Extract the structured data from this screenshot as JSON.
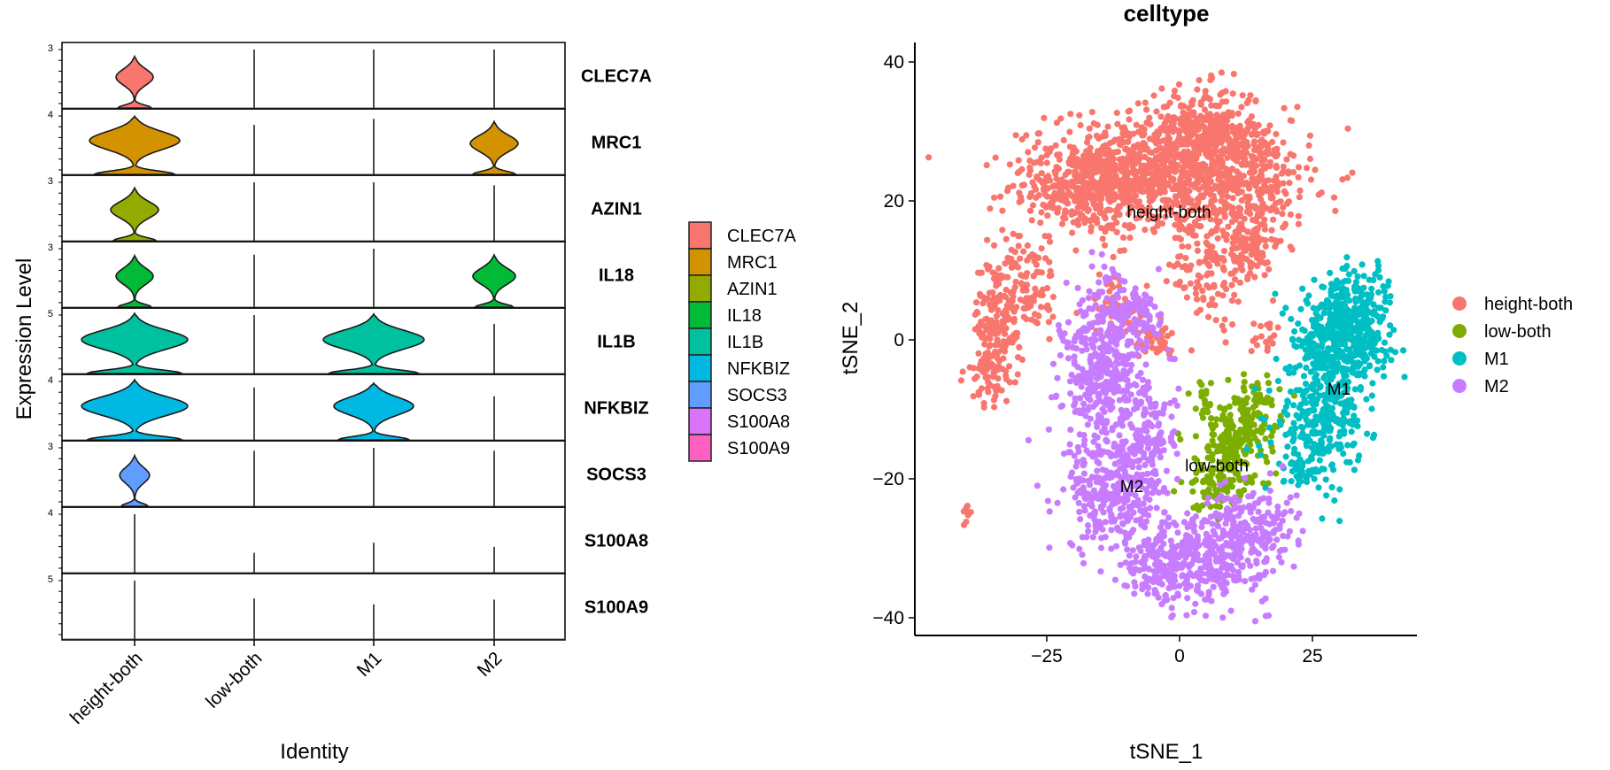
{
  "chart_data": [
    {
      "type": "violin",
      "title": "",
      "xlabel": "Identity",
      "ylabel": "Expression Level",
      "categories": [
        "height-both",
        "low-both",
        "M1",
        "M2"
      ],
      "features": [
        {
          "name": "CLEC7A",
          "color": "#F8766D",
          "ymax_label": "3",
          "ymax": 3,
          "densities": [
            0.35,
            0,
            0,
            0
          ],
          "vlines": [
            0,
            1.0,
            1.0,
            1.0
          ]
        },
        {
          "name": "MRC1",
          "color": "#D39200",
          "ymax_label": "4",
          "ymax": 4,
          "densities": [
            0.85,
            0,
            0,
            0.45
          ],
          "vlines": [
            0,
            0.85,
            0.95,
            0
          ]
        },
        {
          "name": "AZIN1",
          "color": "#93AA00",
          "ymax_label": "3",
          "ymax": 3,
          "densities": [
            0.45,
            0,
            0,
            0
          ],
          "vlines": [
            0,
            1.0,
            1.0,
            0.95
          ]
        },
        {
          "name": "IL18",
          "color": "#00BA38",
          "ymax_label": "3",
          "ymax": 3,
          "densities": [
            0.35,
            0,
            0,
            0.4
          ],
          "vlines": [
            0,
            0.9,
            1.0,
            0
          ]
        },
        {
          "name": "IL1B",
          "color": "#00C19F",
          "ymax_label": "5",
          "ymax": 5,
          "densities": [
            1.0,
            0,
            0.95,
            0
          ],
          "vlines": [
            0,
            1.0,
            0,
            0.85
          ]
        },
        {
          "name": "NFKBIZ",
          "color": "#00B9E3",
          "ymax_label": "4",
          "ymax": 4,
          "densities": [
            1.0,
            0,
            0.75,
            0
          ],
          "vlines": [
            0,
            0.9,
            0,
            0.75
          ]
        },
        {
          "name": "SOCS3",
          "color": "#619CFF",
          "ymax_label": "3",
          "ymax": 3,
          "densities": [
            0.28,
            0,
            0,
            0
          ],
          "vlines": [
            0,
            0.95,
            1.0,
            0.95
          ]
        },
        {
          "name": "S100A8",
          "color": "#DB72FB",
          "ymax_label": "4",
          "ymax": 4,
          "densities": [
            0,
            0,
            0,
            0
          ],
          "vlines": [
            1.0,
            0.35,
            0.52,
            0.45
          ]
        },
        {
          "name": "S100A9",
          "color": "#FF61C3",
          "ymax_label": "5",
          "ymax": 5,
          "densities": [
            0,
            0,
            0,
            0
          ],
          "vlines": [
            1.0,
            0.7,
            0.6,
            0.68
          ]
        }
      ],
      "legend": {
        "position": "right",
        "entries": [
          "CLEC7A",
          "MRC1",
          "AZIN1",
          "IL18",
          "IL1B",
          "NFKBIZ",
          "SOCS3",
          "S100A8",
          "S100A9"
        ]
      }
    },
    {
      "type": "scatter",
      "title": "celltype",
      "xlabel": "tSNE_1",
      "ylabel": "tSNE_2",
      "xlim": [
        -48,
        48
      ],
      "ylim": [
        -42,
        42
      ],
      "xticks": [
        -25,
        0,
        25
      ],
      "xtick_labels": [
        "−25",
        "0",
        "25"
      ],
      "yticks": [
        -40,
        -20,
        0,
        20,
        40
      ],
      "ytick_labels": [
        "−40",
        "−20",
        "0",
        "20",
        "40"
      ],
      "grid": false,
      "legend": {
        "position": "right"
      },
      "series": [
        {
          "name": "height-both",
          "color": "#F8766D",
          "label_position": [
            -2,
            18.5
          ]
        },
        {
          "name": "low-both",
          "color": "#7CAE00",
          "label_position": [
            7,
            -18
          ]
        },
        {
          "name": "M1",
          "color": "#00BFC4",
          "label_position": [
            30,
            -7
          ]
        },
        {
          "name": "M2",
          "color": "#C77CFF",
          "label_position": [
            -9,
            -21
          ]
        }
      ]
    }
  ]
}
